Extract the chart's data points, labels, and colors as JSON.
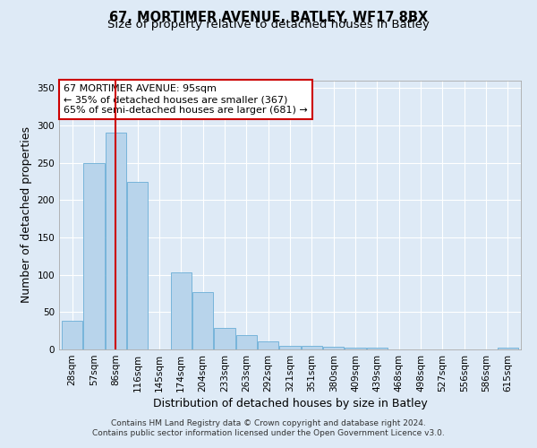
{
  "title": "67, MORTIMER AVENUE, BATLEY, WF17 8BX",
  "subtitle": "Size of property relative to detached houses in Batley",
  "xlabel": "Distribution of detached houses by size in Batley",
  "ylabel": "Number of detached properties",
  "bin_labels": [
    "28sqm",
    "57sqm",
    "86sqm",
    "116sqm",
    "145sqm",
    "174sqm",
    "204sqm",
    "233sqm",
    "263sqm",
    "292sqm",
    "321sqm",
    "351sqm",
    "380sqm",
    "409sqm",
    "439sqm",
    "468sqm",
    "498sqm",
    "527sqm",
    "556sqm",
    "586sqm",
    "615sqm"
  ],
  "bar_values": [
    39,
    250,
    291,
    225,
    0,
    103,
    77,
    29,
    19,
    11,
    5,
    5,
    4,
    3,
    3,
    0,
    0,
    0,
    0,
    0,
    2
  ],
  "bar_color": "#b8d4eb",
  "bar_edge_color": "#6aaed6",
  "vline_x": 2,
  "vline_color": "#cc0000",
  "annotation_box_text": "67 MORTIMER AVENUE: 95sqm\n← 35% of detached houses are smaller (367)\n65% of semi-detached houses are larger (681) →",
  "annotation_box_color": "#ffffff",
  "annotation_box_edge_color": "#cc0000",
  "ylim": [
    0,
    360
  ],
  "yticks": [
    0,
    50,
    100,
    150,
    200,
    250,
    300,
    350
  ],
  "footer_text": "Contains HM Land Registry data © Crown copyright and database right 2024.\nContains public sector information licensed under the Open Government Licence v3.0.",
  "bg_color": "#deeaf6",
  "plot_bg_color": "#deeaf6",
  "grid_color": "#ffffff",
  "title_fontsize": 10.5,
  "subtitle_fontsize": 9.5,
  "axis_label_fontsize": 9,
  "tick_fontsize": 7.5,
  "footer_fontsize": 6.5,
  "annotation_fontsize": 8
}
